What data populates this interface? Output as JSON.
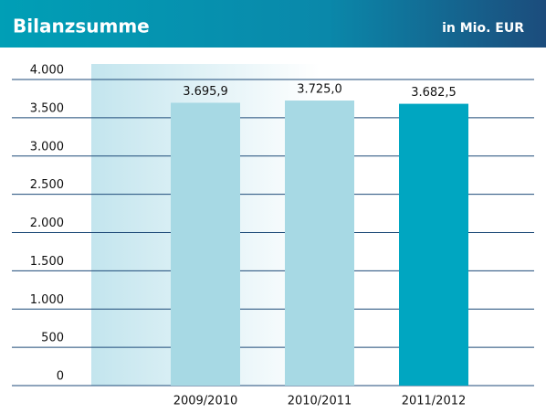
{
  "chart_data": {
    "type": "bar",
    "title": "Bilanzsumme",
    "subtitle": "in Mio. EUR",
    "categories": [
      "2009/2010",
      "2010/2011",
      "2011/2012"
    ],
    "values": [
      3695.9,
      3725.0,
      3682.5
    ],
    "value_labels": [
      "3.695,9",
      "3.725,0",
      "3.682,5"
    ],
    "colors": [
      "#a7d9e4",
      "#a7d9e4",
      "#00a6c1"
    ],
    "ylim": [
      0,
      4000
    ],
    "yticks": [
      0,
      500,
      {
        "value": 1000,
        "label": "1.000"
      },
      {
        "value": 1500,
        "label": "1.500"
      },
      {
        "value": 2000,
        "label": "2.000"
      },
      {
        "value": 2500,
        "label": "2.500"
      },
      {
        "value": 3000,
        "label": "3.000"
      },
      {
        "value": 3500,
        "label": "3.500"
      },
      {
        "value": 4000,
        "label": "4.000"
      }
    ],
    "grid": true
  }
}
